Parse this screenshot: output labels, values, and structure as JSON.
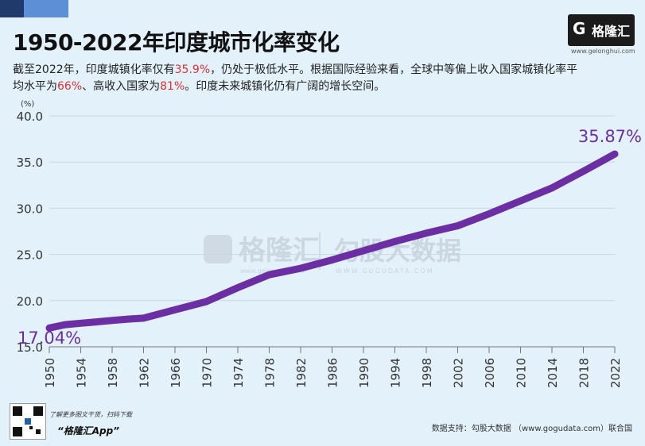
{
  "title": "1950-2022年印度城市化率变化",
  "subtitle": {
    "p1": "截至2022年，印度城镇化率仅有",
    "v1": "35.9%",
    "p2": "，仍处于极低水平。根据国际经验来看，全球中等偏上收入国家城镇化率平均水平为",
    "v2": "66%",
    "p3": "、高收入国家为",
    "v3": "81%",
    "p4": "。印度未来城镇化仍有广阔的增长空间。"
  },
  "logo": {
    "glyph": "G",
    "text": "格隆汇",
    "url": "www.gelonghui.com"
  },
  "watermark": {
    "brand1": "格隆汇",
    "brand1_url": "www.gelonghui.com",
    "brand2": "勾股大数据",
    "brand2_url": "WWW.GOGUDATA.COM"
  },
  "footer": {
    "hint": "了解更多图文干货，扫码下载",
    "app": "“格隆汇App”",
    "source": "数据支持：勾股大数据 （www.gogudata.com）联合国"
  },
  "colors": {
    "line": "#6b2fa3",
    "grid": "#c9d6e2",
    "highlight": "#e03030"
  },
  "chart_data": {
    "type": "line",
    "title": "1950-2022年印度城市化率变化",
    "ylabel": "(%)",
    "xlabel": "",
    "ylim": [
      15,
      40
    ],
    "yticks": [
      "15.0",
      "20.0",
      "25.0",
      "30.0",
      "35.0",
      "40.0"
    ],
    "xticks": [
      "1950",
      "1954",
      "1958",
      "1962",
      "1966",
      "1970",
      "1974",
      "1978",
      "1982",
      "1986",
      "1990",
      "1994",
      "1998",
      "2002",
      "2006",
      "2010",
      "2014",
      "2018",
      "2022"
    ],
    "x": [
      1950,
      1952,
      1954,
      1956,
      1958,
      1960,
      1962,
      1966,
      1970,
      1974,
      1978,
      1982,
      1986,
      1990,
      1994,
      1998,
      2002,
      2006,
      2010,
      2014,
      2018,
      2022
    ],
    "series": [
      {
        "name": "印度城市化率",
        "values": [
          17.04,
          17.4,
          17.55,
          17.7,
          17.85,
          18.0,
          18.1,
          19.0,
          19.9,
          21.4,
          22.8,
          23.5,
          24.4,
          25.4,
          26.4,
          27.3,
          28.1,
          29.4,
          30.8,
          32.2,
          34.0,
          35.87
        ]
      }
    ],
    "annotations": [
      {
        "label": "17.04%"
      },
      {
        "label": "35.87%"
      }
    ]
  }
}
